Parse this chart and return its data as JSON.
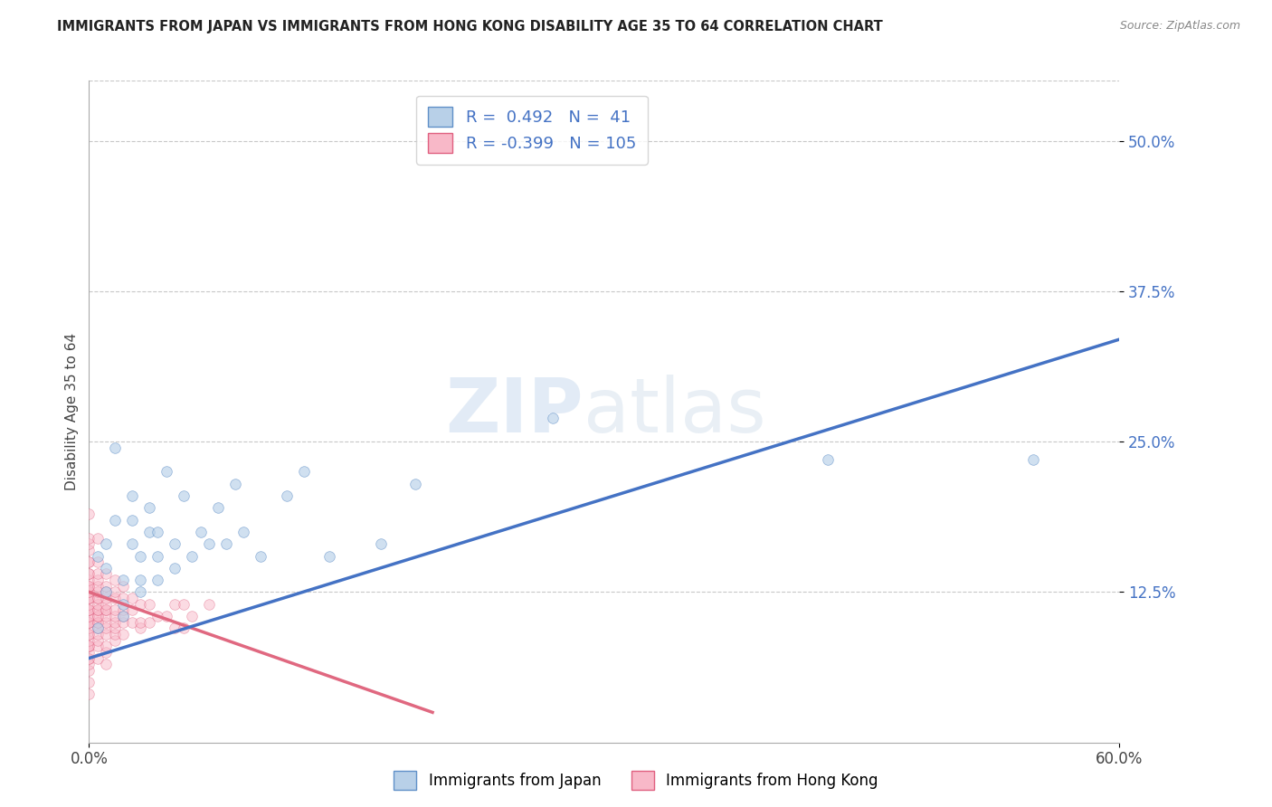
{
  "title": "IMMIGRANTS FROM JAPAN VS IMMIGRANTS FROM HONG KONG DISABILITY AGE 35 TO 64 CORRELATION CHART",
  "source_text": "Source: ZipAtlas.com",
  "ylabel": "Disability Age 35 to 64",
  "xlim": [
    0.0,
    0.6
  ],
  "ylim": [
    0.0,
    0.55
  ],
  "x_tick_labels": [
    "0.0%",
    "60.0%"
  ],
  "x_ticks": [
    0.0,
    0.6
  ],
  "y_tick_labels": [
    "12.5%",
    "25.0%",
    "37.5%",
    "50.0%"
  ],
  "y_ticks": [
    0.125,
    0.25,
    0.375,
    0.5
  ],
  "grid_color": "#c8c8c8",
  "background_color": "#ffffff",
  "watermark_text1": "ZIP",
  "watermark_text2": "atlas",
  "legend_label1": "R =  0.492   N =  41",
  "legend_label2": "R = -0.399   N = 105",
  "blue_fill_color": "#b8d0e8",
  "pink_fill_color": "#f8b8c8",
  "blue_edge_color": "#6090c8",
  "pink_edge_color": "#e06080",
  "blue_line_color": "#4472c4",
  "pink_line_color": "#e06880",
  "blue_scatter_alpha": 0.65,
  "pink_scatter_alpha": 0.5,
  "scatter_size": 70,
  "blue_points_x": [
    0.005,
    0.005,
    0.01,
    0.01,
    0.01,
    0.015,
    0.015,
    0.02,
    0.02,
    0.02,
    0.025,
    0.025,
    0.025,
    0.03,
    0.03,
    0.03,
    0.035,
    0.035,
    0.04,
    0.04,
    0.04,
    0.045,
    0.05,
    0.05,
    0.055,
    0.06,
    0.065,
    0.07,
    0.075,
    0.08,
    0.085,
    0.09,
    0.1,
    0.115,
    0.125,
    0.14,
    0.17,
    0.19,
    0.27,
    0.43,
    0.55
  ],
  "blue_points_y": [
    0.095,
    0.155,
    0.125,
    0.145,
    0.165,
    0.185,
    0.245,
    0.105,
    0.115,
    0.135,
    0.165,
    0.185,
    0.205,
    0.125,
    0.135,
    0.155,
    0.175,
    0.195,
    0.135,
    0.155,
    0.175,
    0.225,
    0.145,
    0.165,
    0.205,
    0.155,
    0.175,
    0.165,
    0.195,
    0.165,
    0.215,
    0.175,
    0.155,
    0.205,
    0.225,
    0.155,
    0.165,
    0.215,
    0.27,
    0.235,
    0.235
  ],
  "pink_points_x": [
    0.0,
    0.0,
    0.0,
    0.0,
    0.0,
    0.0,
    0.0,
    0.0,
    0.0,
    0.0,
    0.0,
    0.0,
    0.0,
    0.0,
    0.0,
    0.0,
    0.0,
    0.0,
    0.0,
    0.0,
    0.0,
    0.0,
    0.0,
    0.0,
    0.0,
    0.0,
    0.0,
    0.0,
    0.0,
    0.0,
    0.0,
    0.0,
    0.0,
    0.0,
    0.0,
    0.0,
    0.0,
    0.0,
    0.0,
    0.0,
    0.005,
    0.005,
    0.005,
    0.005,
    0.005,
    0.005,
    0.005,
    0.005,
    0.005,
    0.005,
    0.005,
    0.005,
    0.005,
    0.005,
    0.005,
    0.005,
    0.005,
    0.005,
    0.005,
    0.005,
    0.01,
    0.01,
    0.01,
    0.01,
    0.01,
    0.01,
    0.01,
    0.01,
    0.01,
    0.01,
    0.01,
    0.01,
    0.01,
    0.01,
    0.015,
    0.015,
    0.015,
    0.015,
    0.015,
    0.015,
    0.015,
    0.015,
    0.015,
    0.02,
    0.02,
    0.02,
    0.02,
    0.02,
    0.02,
    0.025,
    0.025,
    0.025,
    0.03,
    0.03,
    0.03,
    0.035,
    0.035,
    0.04,
    0.045,
    0.05,
    0.05,
    0.055,
    0.055,
    0.06,
    0.07
  ],
  "pink_points_y": [
    0.04,
    0.05,
    0.06,
    0.065,
    0.07,
    0.07,
    0.075,
    0.08,
    0.08,
    0.08,
    0.085,
    0.09,
    0.09,
    0.095,
    0.1,
    0.1,
    0.1,
    0.105,
    0.105,
    0.11,
    0.11,
    0.11,
    0.115,
    0.12,
    0.12,
    0.12,
    0.125,
    0.125,
    0.13,
    0.13,
    0.13,
    0.135,
    0.14,
    0.14,
    0.15,
    0.15,
    0.16,
    0.165,
    0.17,
    0.19,
    0.07,
    0.08,
    0.085,
    0.09,
    0.095,
    0.1,
    0.1,
    0.105,
    0.105,
    0.11,
    0.11,
    0.115,
    0.12,
    0.12,
    0.125,
    0.13,
    0.135,
    0.14,
    0.15,
    0.17,
    0.065,
    0.075,
    0.08,
    0.09,
    0.095,
    0.1,
    0.105,
    0.11,
    0.11,
    0.115,
    0.12,
    0.125,
    0.13,
    0.14,
    0.085,
    0.09,
    0.095,
    0.1,
    0.105,
    0.11,
    0.12,
    0.125,
    0.135,
    0.09,
    0.1,
    0.105,
    0.11,
    0.12,
    0.13,
    0.1,
    0.11,
    0.12,
    0.095,
    0.1,
    0.115,
    0.1,
    0.115,
    0.105,
    0.105,
    0.095,
    0.115,
    0.095,
    0.115,
    0.105,
    0.115
  ],
  "blue_line_x0": 0.0,
  "blue_line_x1": 0.6,
  "blue_line_y0": 0.07,
  "blue_line_y1": 0.335,
  "pink_line_x0": 0.0,
  "pink_line_x1": 0.2,
  "pink_line_y0": 0.125,
  "pink_line_y1": 0.025,
  "figsize": [
    14.06,
    8.92
  ],
  "dpi": 100
}
